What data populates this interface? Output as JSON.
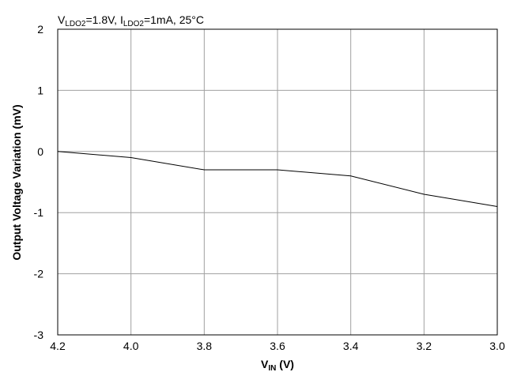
{
  "chart_data": {
    "type": "line",
    "title": "",
    "condition": {
      "v_sym": "V",
      "v_sub": "LDO2",
      "v_val": "=1.8V, ",
      "i_sym": "I",
      "i_sub": "LDO2",
      "i_val": "=1mA, 25°C"
    },
    "xlabel": {
      "sym": "V",
      "sub": "IN",
      "unit": " (V)"
    },
    "ylabel": "Output Voltage Variation (mV)",
    "xlim": [
      4.2,
      3.0
    ],
    "ylim": [
      -3,
      2
    ],
    "xticks": [
      4.2,
      4.0,
      3.8,
      3.6,
      3.4,
      3.2,
      3.0
    ],
    "xtick_labels": [
      "4.2",
      "4.0",
      "3.8",
      "3.6",
      "3.4",
      "3.2",
      "3.0"
    ],
    "yticks": [
      2,
      1,
      0,
      -1,
      -2,
      -3
    ],
    "ytick_labels": [
      "2",
      "1",
      "0",
      "-1",
      "-2",
      "-3"
    ],
    "grid": true,
    "series": [
      {
        "x": [
          4.2,
          4.0,
          3.8,
          3.6,
          3.4,
          3.2,
          3.0
        ],
        "y": [
          0.0,
          -0.1,
          -0.3,
          -0.3,
          -0.4,
          -0.7,
          -0.9
        ]
      }
    ]
  }
}
